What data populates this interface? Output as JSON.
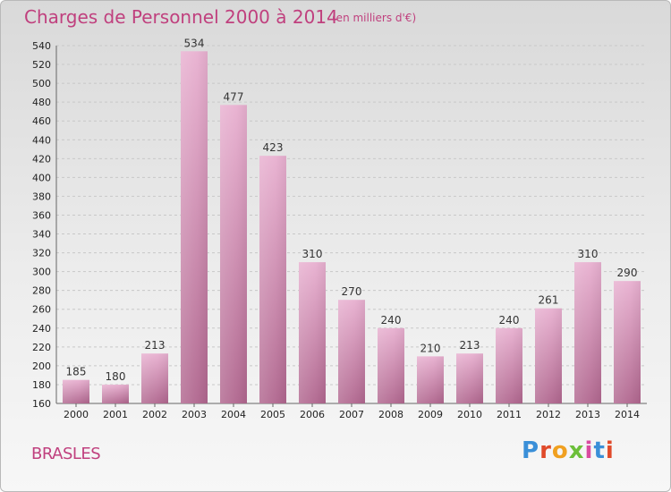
{
  "header": {
    "title": "Charges de Personnel 2000 à 2014",
    "subtitle": "(en milliers d'€)"
  },
  "footer": {
    "commune": "BRASLES",
    "logo_text": "Proxiti"
  },
  "colors": {
    "title": "#c0407e",
    "bar_light": "#e8b0d0",
    "bar_dark": "#b0668e",
    "logo": [
      "#3a8fd8",
      "#e04a2a",
      "#f0a020",
      "#6cbf3a",
      "#d94aa0",
      "#3a8fd8",
      "#e04a2a"
    ]
  },
  "chart_data": {
    "type": "bar",
    "title": "Charges de Personnel 2000 à 2014",
    "subtitle": "(en milliers d'€)",
    "categories": [
      "2000",
      "2001",
      "2002",
      "2003",
      "2004",
      "2005",
      "2006",
      "2007",
      "2008",
      "2009",
      "2010",
      "2011",
      "2012",
      "2013",
      "2014"
    ],
    "values": [
      185,
      180,
      213,
      534,
      477,
      423,
      310,
      270,
      240,
      210,
      213,
      240,
      261,
      310,
      290
    ],
    "ylim": [
      160,
      540
    ],
    "yticks": [
      160,
      180,
      200,
      220,
      240,
      260,
      280,
      300,
      320,
      340,
      360,
      380,
      400,
      420,
      440,
      460,
      480,
      500,
      520,
      540
    ],
    "grid": true
  }
}
